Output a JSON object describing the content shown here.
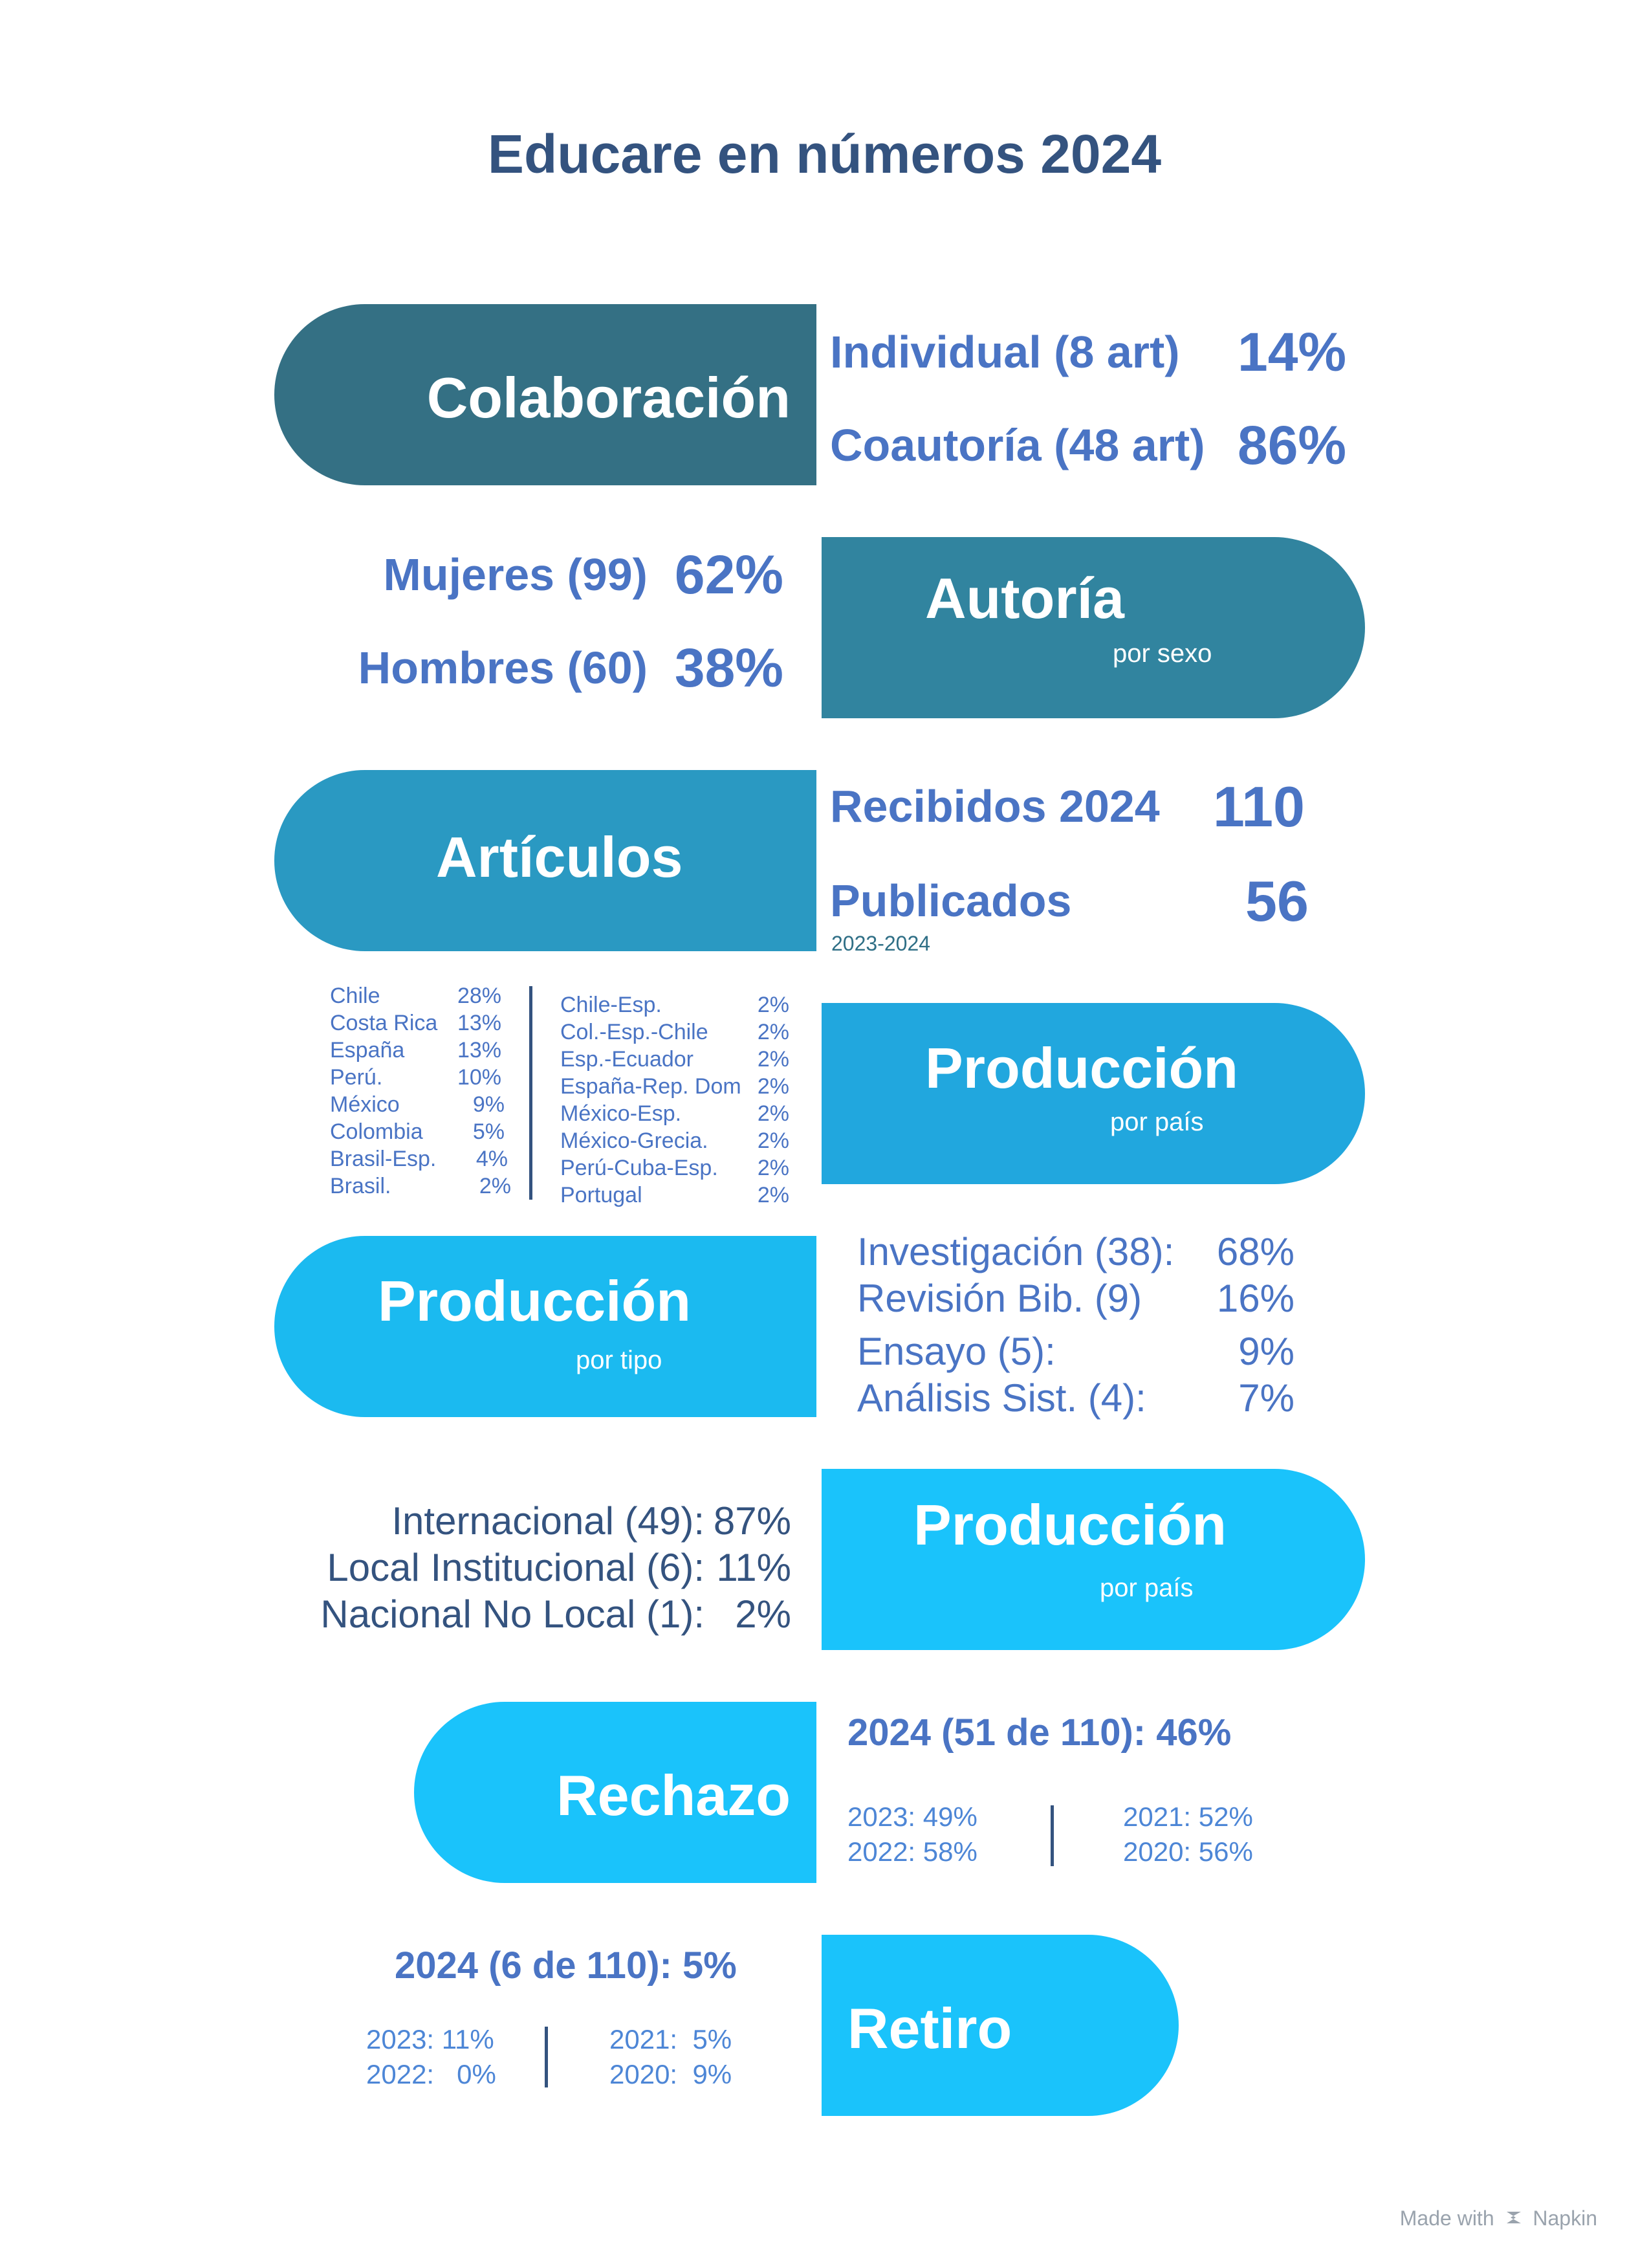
{
  "title": "Educare en números 2024",
  "colors": {
    "title": "#34537f",
    "value_blue": "#4a74c4",
    "pill_1": "#347084",
    "pill_2": "#31849f",
    "pill_3": "#2a99c2",
    "pill_4": "#21a7de",
    "pill_5": "#1bbaf0",
    "pill_6": "#1ac3fb"
  },
  "colaboracion": {
    "label": "Colaboración",
    "items": [
      {
        "label": "Individual (8 art)",
        "value": "14%"
      },
      {
        "label": "Coautoría (48 art)",
        "value": "86%"
      }
    ]
  },
  "autoria": {
    "label": "Autoría",
    "sub": "por sexo",
    "items": [
      {
        "label": "Mujeres (99)",
        "value": "62%"
      },
      {
        "label": "Hombres (60)",
        "value": "38%"
      }
    ]
  },
  "articulos": {
    "label": "Artículos",
    "items": [
      {
        "label": "Recibidos 2024",
        "value": "110"
      },
      {
        "label": "Publicados",
        "value": "56"
      }
    ],
    "period": "2023-2024"
  },
  "produccion_pais": {
    "label": "Producción",
    "sub": "por país",
    "col1": [
      {
        "name": "Chile",
        "value": "28%"
      },
      {
        "name": "Costa Rica",
        "value": "13%"
      },
      {
        "name": "España",
        "value": "13%"
      },
      {
        "name": "Perú.",
        "value": "10%"
      },
      {
        "name": "México",
        "value": "9%"
      },
      {
        "name": "Colombia",
        "value": "5%"
      },
      {
        "name": "Brasil-Esp.",
        "value": "4%"
      },
      {
        "name": "Brasil.",
        "value": "2%"
      }
    ],
    "col2": [
      {
        "name": "Chile-Esp.",
        "value": "2%"
      },
      {
        "name": "Col.-Esp.-Chile",
        "value": "2%"
      },
      {
        "name": "Esp.-Ecuador",
        "value": "2%"
      },
      {
        "name": "España-Rep. Dom",
        "value": "2%"
      },
      {
        "name": "México-Esp.",
        "value": "2%"
      },
      {
        "name": "México-Grecia.",
        "value": "2%"
      },
      {
        "name": "Perú-Cuba-Esp.",
        "value": "2%"
      },
      {
        "name": "Portugal",
        "value": "2%"
      }
    ]
  },
  "produccion_tipo": {
    "label": "Producción",
    "sub": "por tipo",
    "items": [
      {
        "label": "Investigación (38):",
        "value": "68%"
      },
      {
        "label": "Revisión Bib. (9)",
        "value": "16%"
      },
      {
        "label": "Ensayo (5):",
        "value": "9%"
      },
      {
        "label": "Análisis Sist. (4):",
        "value": "7%"
      }
    ]
  },
  "produccion_ambito": {
    "label": "Producción",
    "sub": "por país",
    "items": [
      {
        "label": "Internacional (49):",
        "value": "87%"
      },
      {
        "label": "Local Institucional (6):",
        "value": "11%"
      },
      {
        "label": "Nacional No Local (1):",
        "value": "2%"
      }
    ]
  },
  "rechazo": {
    "label": "Rechazo",
    "headline": "2024 (51 de 110): 46%",
    "left": [
      "2023: 49%",
      "2022: 58%"
    ],
    "right": [
      "2021: 52%",
      "2020: 56%"
    ]
  },
  "retiro": {
    "label": "Retiro",
    "headline": "2024 (6 de 110): 5%",
    "left": [
      "2023: 11%",
      "2022:   0%"
    ],
    "right": [
      "2021:  5%",
      "2020:  9%"
    ]
  },
  "footer": {
    "made_with": "Made with",
    "brand": "Napkin",
    "brand_icon": "napkin-logo-icon"
  }
}
